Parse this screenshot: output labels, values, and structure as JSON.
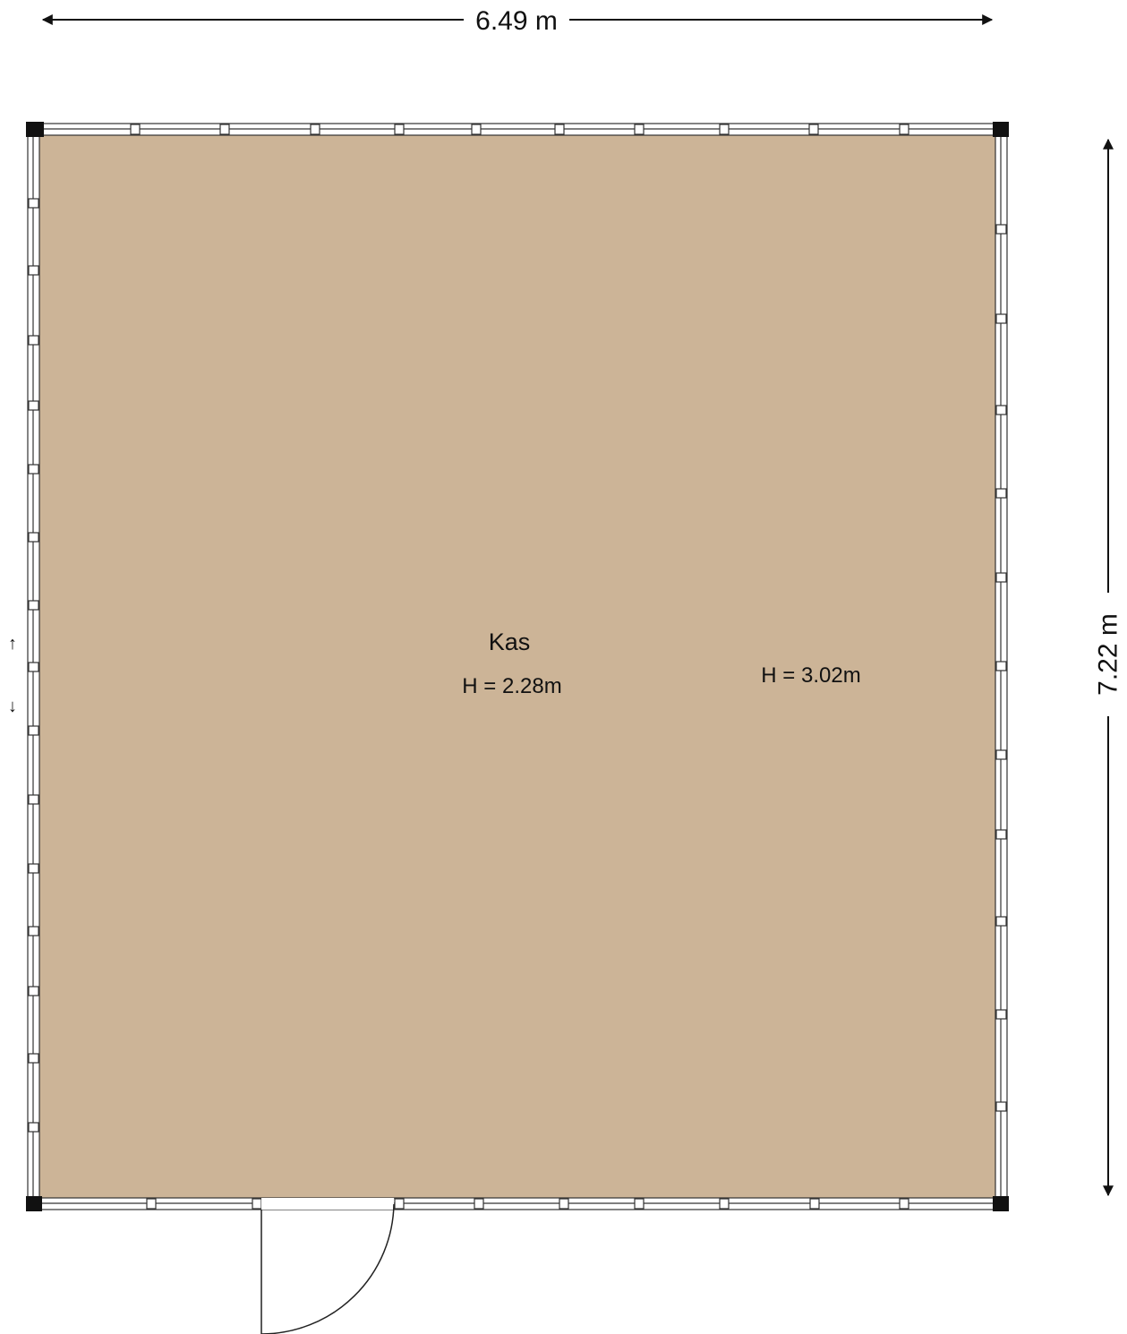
{
  "floorplan": {
    "dimensions": {
      "width": "6.49 m",
      "height": "7.22 m"
    },
    "room": {
      "name": "Kas",
      "height_label": "H = 2.28m"
    },
    "secondary_height_label": "H = 3.02m",
    "stair_arrows": {
      "up": "↑",
      "down": "↓"
    },
    "colors": {
      "floor": "#CCB497",
      "wall": "#000000",
      "background": "#FFFFFF"
    }
  }
}
